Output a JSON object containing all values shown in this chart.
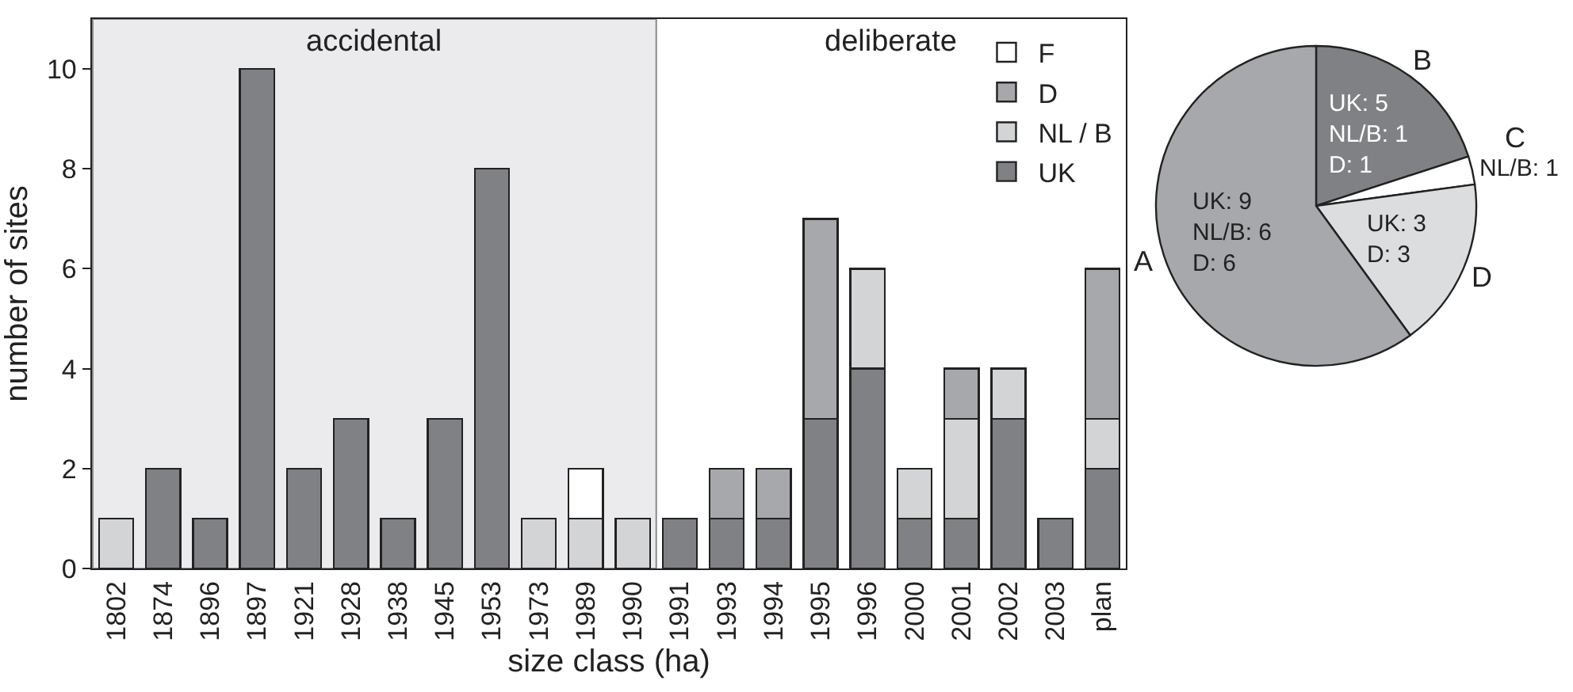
{
  "chart_data": [
    {
      "type": "bar",
      "stacked": true,
      "xlabel": "size class (ha)",
      "ylabel": "number of sites",
      "categories": [
        "1802",
        "1874",
        "1896",
        "1897",
        "1921",
        "1928",
        "1938",
        "1945",
        "1953",
        "1973",
        "1989",
        "1990",
        "1991",
        "1993",
        "1994",
        "1995",
        "1996",
        "2000",
        "2001",
        "2002",
        "2003",
        "plan"
      ],
      "series": [
        {
          "name": "UK",
          "color": "#808184",
          "values": [
            null,
            2,
            1,
            10,
            2,
            3,
            1,
            3,
            8,
            null,
            null,
            null,
            1,
            1,
            1,
            3,
            4,
            1,
            1,
            3,
            1,
            2
          ]
        },
        {
          "name": "NL / B",
          "color": "#d3d4d6",
          "values": [
            1,
            null,
            null,
            null,
            null,
            null,
            null,
            null,
            null,
            1,
            1,
            1,
            null,
            null,
            null,
            null,
            2,
            1,
            2,
            1,
            null,
            1
          ]
        },
        {
          "name": "D",
          "color": "#a7a8ab",
          "values": [
            null,
            null,
            null,
            null,
            null,
            null,
            null,
            null,
            null,
            null,
            null,
            null,
            null,
            1,
            1,
            4,
            null,
            null,
            1,
            null,
            null,
            3
          ]
        },
        {
          "name": "F",
          "color": "#ffffff",
          "values": [
            null,
            null,
            null,
            null,
            null,
            null,
            null,
            null,
            null,
            null,
            1,
            null,
            null,
            null,
            null,
            null,
            null,
            null,
            null,
            null,
            null,
            null
          ]
        }
      ],
      "ylim": [
        0,
        11
      ],
      "yticks": [
        0,
        2,
        4,
        6,
        8,
        10
      ],
      "legend": "top right",
      "bands": [
        {
          "axis": "x",
          "from": "1802",
          "to": "1990",
          "label": "accidental",
          "color": "#ebebed"
        }
      ],
      "annotations": [
        "deliberate"
      ]
    },
    {
      "type": "pie",
      "categories": [
        "B",
        "C",
        "D",
        "A"
      ],
      "values": [
        7,
        1,
        6,
        21
      ],
      "colors": [
        "#808184",
        "#ffffff",
        "#dcdddf",
        "#a7a8ab"
      ],
      "value_labels": [
        "UK: 5\nNL/B: 1\nD: 1",
        "NL/B: 1",
        "UK: 3\nD: 3",
        "UK: 9\nNL/B: 6\nD: 6"
      ]
    }
  ]
}
